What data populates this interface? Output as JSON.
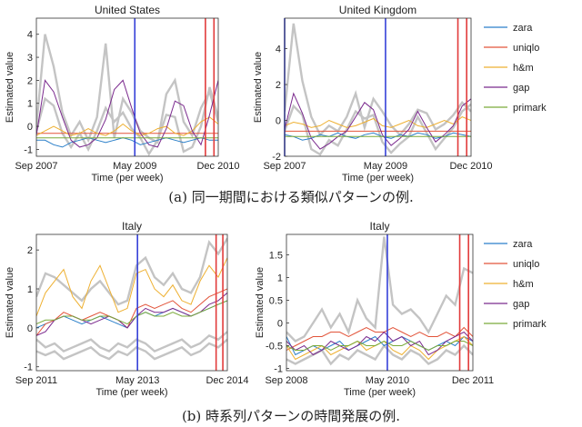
{
  "captions": {
    "a": "(a) 同一期間における類似パターンの例.",
    "b": "(b) 時系列パターンの時間発展の例."
  },
  "legend": [
    {
      "name": "zara",
      "color": "#2a7fc9"
    },
    {
      "name": "uniqlo",
      "color": "#e2543a"
    },
    {
      "name": "h&m",
      "color": "#eeb031"
    },
    {
      "name": "gap",
      "color": "#7b2a8e"
    },
    {
      "name": "primark",
      "color": "#7aaa3a"
    }
  ],
  "chart_data": [
    {
      "type": "line",
      "title": "United States",
      "xlabel": "Time (per week)",
      "ylabel": "Estimated value",
      "xtick_labels": [
        "Sep 2007",
        "May 2009",
        "Dec 2010"
      ],
      "yticks": [
        -1,
        0,
        1,
        2,
        3,
        4
      ],
      "ylim": [
        -1.3,
        4.7
      ],
      "n_weeks": 170,
      "vlines": [
        {
          "week": 92,
          "color": "#3540d8"
        },
        {
          "week": 158,
          "color": "#e23b3b"
        },
        {
          "week": 166,
          "color": "#e23b3b"
        }
      ],
      "series": [
        {
          "name": "zara",
          "values": [
            -0.6,
            -0.6,
            -0.8,
            -0.9,
            -0.7,
            -0.6,
            -0.5,
            -0.6,
            -0.7,
            -0.6,
            -0.5,
            -0.6,
            -0.8,
            -0.7,
            -0.6,
            -0.5,
            -0.6,
            -0.7,
            -0.6,
            -0.5,
            -0.6,
            -0.6
          ]
        },
        {
          "name": "uniqlo",
          "values": [
            -0.3,
            -0.3,
            -0.3,
            -0.3,
            -0.3,
            -0.3,
            -0.3,
            -0.3,
            -0.3,
            -0.3,
            -0.3,
            -0.3,
            -0.3,
            -0.3,
            -0.3,
            -0.3,
            -0.3,
            -0.3,
            -0.3,
            -0.3,
            -0.3,
            -0.3
          ]
        },
        {
          "name": "h&m",
          "values": [
            -0.4,
            -0.2,
            0.0,
            -0.2,
            -0.4,
            -0.3,
            -0.1,
            -0.3,
            -0.4,
            -0.2,
            0.1,
            -0.2,
            -0.4,
            -0.3,
            -0.1,
            0.0,
            -0.3,
            -0.4,
            -0.2,
            0.2,
            0.4,
            0.1
          ]
        },
        {
          "name": "gap",
          "values": [
            -0.4,
            2.0,
            1.5,
            0.4,
            -0.6,
            -0.9,
            -0.8,
            -0.5,
            0.3,
            1.6,
            2.0,
            0.8,
            -0.3,
            -0.8,
            -0.9,
            -0.1,
            1.1,
            0.9,
            -0.2,
            -0.8,
            0.5,
            2.0
          ]
        },
        {
          "name": "primark",
          "values": [
            -0.5,
            -0.5,
            -0.5,
            -0.5,
            -0.5,
            -0.5,
            -0.5,
            -0.5,
            -0.5,
            -0.5,
            -0.5,
            -0.5,
            -0.5,
            -0.5,
            -0.5,
            -0.5,
            -0.5,
            -0.5,
            -0.5,
            -0.5,
            -0.5,
            -0.5
          ]
        }
      ],
      "background": [
        [
          0.0,
          4.0,
          2.6,
          0.6,
          -0.4,
          0.2,
          -0.6,
          0.4,
          3.6,
          -0.5,
          1.2,
          0.6,
          -0.2,
          -0.5,
          -0.7,
          1.4,
          2.0,
          0.2,
          -0.4,
          0.8,
          1.5,
          0.2
        ],
        [
          -0.2,
          1.2,
          0.9,
          -0.3,
          -0.9,
          -0.3,
          -1.0,
          -0.2,
          0.8,
          0.2,
          0.6,
          -0.1,
          -0.5,
          -1.2,
          -0.6,
          0.5,
          0.4,
          -1.1,
          -0.9,
          0.0,
          1.7,
          0.4
        ]
      ]
    },
    {
      "type": "line",
      "title": "United Kingdom",
      "xlabel": "Time (per week)",
      "ylabel": "Estimated value",
      "xtick_labels": [
        "Sep 2007",
        "May 2009",
        "Dec 2010"
      ],
      "yticks": [
        -2,
        0,
        2,
        4
      ],
      "ylim": [
        -2.0,
        5.7
      ],
      "n_weeks": 170,
      "vlines": [
        {
          "week": 0,
          "color": "#3540d8"
        },
        {
          "week": 92,
          "color": "#3540d8"
        },
        {
          "week": 158,
          "color": "#e23b3b"
        },
        {
          "week": 166,
          "color": "#e23b3b"
        }
      ],
      "series": [
        {
          "name": "zara",
          "values": [
            -0.8,
            -0.9,
            -1.1,
            -1.0,
            -0.8,
            -0.9,
            -0.7,
            -0.9,
            -1.0,
            -0.8,
            -0.7,
            -0.9,
            -1.0,
            -0.8,
            -0.9,
            -0.7,
            -0.8,
            -1.0,
            -0.9,
            -0.7,
            -0.8,
            -0.9
          ]
        },
        {
          "name": "uniqlo",
          "values": [
            -0.6,
            -0.6,
            -0.6,
            -0.6,
            -0.6,
            -0.6,
            -0.6,
            -0.6,
            -0.6,
            -0.6,
            -0.6,
            -0.6,
            -0.6,
            -0.6,
            -0.6,
            -0.6,
            -0.6,
            -0.6,
            -0.6,
            -0.6,
            -0.6,
            -0.6
          ]
        },
        {
          "name": "h&m",
          "values": [
            -0.3,
            -0.1,
            -0.2,
            -0.4,
            -0.3,
            0.0,
            -0.2,
            -0.4,
            -0.3,
            -0.1,
            0.1,
            -0.3,
            -0.4,
            -0.2,
            0.0,
            -0.3,
            -0.4,
            -0.2,
            0.0,
            -0.2,
            0.2,
            0.0
          ]
        },
        {
          "name": "gap",
          "values": [
            -0.5,
            1.5,
            0.4,
            -1.0,
            -1.6,
            -1.3,
            -0.9,
            -0.6,
            0.2,
            1.0,
            0.6,
            -0.8,
            -1.4,
            -1.0,
            -0.5,
            0.5,
            -0.4,
            -1.2,
            -0.8,
            -0.3,
            0.8,
            1.2
          ]
        },
        {
          "name": "primark",
          "values": [
            -0.9,
            -0.9,
            -0.9,
            -0.9,
            -0.9,
            -0.9,
            -0.9,
            -0.9,
            -0.9,
            -0.9,
            -0.9,
            -0.9,
            -0.9,
            -0.9,
            -0.9,
            -0.9,
            -0.9,
            -0.9,
            -0.9,
            -0.9,
            -0.9,
            -0.9
          ]
        }
      ],
      "background": [
        [
          0.5,
          5.4,
          2.2,
          0.2,
          -0.8,
          -0.3,
          -0.6,
          0.2,
          1.5,
          -0.4,
          1.2,
          0.5,
          -0.3,
          -0.8,
          -0.2,
          0.6,
          0.4,
          -0.5,
          -0.2,
          0.3,
          1.0,
          0.5
        ],
        [
          -0.6,
          0.8,
          0.3,
          -1.6,
          -1.9,
          -1.1,
          -1.4,
          -0.5,
          0.5,
          0.1,
          0.3,
          -1.2,
          -1.8,
          -1.3,
          -0.9,
          0.2,
          -0.7,
          -1.6,
          -1.0,
          -0.4,
          0.5,
          0.9
        ]
      ]
    },
    {
      "type": "line",
      "title": "Italy",
      "xlabel": "Time (per week)",
      "ylabel": "Estimated value",
      "xtick_labels": [
        "Sep 2011",
        "May 2013",
        "Dec 2014"
      ],
      "yticks": [
        -1,
        0,
        1,
        2
      ],
      "ylim": [
        -1.1,
        2.4
      ],
      "n_weeks": 170,
      "vlines": [
        {
          "week": 90,
          "color": "#3540d8"
        },
        {
          "week": 160,
          "color": "#e23b3b"
        },
        {
          "week": 166,
          "color": "#e23b3b"
        }
      ],
      "series": [
        {
          "name": "zara",
          "values": [
            0.0,
            0.1,
            0.2,
            0.3,
            0.2,
            0.1,
            0.2,
            0.3,
            0.2,
            0.1,
            0.0,
            0.3,
            0.4,
            0.3,
            0.4,
            0.5,
            0.4,
            0.3,
            0.4,
            0.5,
            0.6,
            0.7
          ]
        },
        {
          "name": "uniqlo",
          "values": [
            -0.2,
            0.1,
            0.2,
            0.4,
            0.3,
            0.2,
            0.3,
            0.4,
            0.3,
            0.2,
            0.0,
            0.5,
            0.6,
            0.5,
            0.6,
            0.7,
            0.5,
            0.4,
            0.6,
            0.8,
            0.9,
            1.0
          ]
        },
        {
          "name": "h&m",
          "values": [
            0.3,
            0.9,
            1.2,
            1.5,
            0.8,
            0.5,
            1.2,
            1.6,
            1.0,
            0.4,
            0.5,
            1.4,
            1.5,
            1.0,
            0.8,
            1.1,
            0.7,
            0.6,
            1.2,
            1.6,
            1.3,
            1.8
          ]
        },
        {
          "name": "gap",
          "values": [
            -0.2,
            -0.1,
            0.2,
            0.3,
            0.3,
            0.2,
            0.1,
            0.2,
            0.3,
            0.2,
            0.0,
            0.3,
            0.5,
            0.4,
            0.4,
            0.5,
            0.4,
            0.3,
            0.4,
            0.6,
            0.7,
            0.9
          ]
        },
        {
          "name": "primark",
          "values": [
            0.1,
            0.2,
            0.2,
            0.3,
            0.3,
            0.2,
            0.2,
            0.3,
            0.3,
            0.2,
            0.1,
            0.3,
            0.4,
            0.3,
            0.3,
            0.4,
            0.3,
            0.3,
            0.4,
            0.5,
            0.6,
            0.7
          ]
        }
      ],
      "background": [
        [
          0.8,
          1.4,
          1.3,
          1.1,
          0.9,
          0.7,
          1.0,
          1.2,
          0.9,
          0.6,
          0.7,
          1.6,
          1.8,
          1.3,
          1.1,
          1.4,
          1.0,
          0.9,
          1.3,
          2.2,
          1.9,
          2.3
        ],
        [
          -0.3,
          -0.5,
          -0.4,
          -0.6,
          -0.5,
          -0.4,
          -0.3,
          -0.5,
          -0.6,
          -0.4,
          -0.5,
          -0.3,
          -0.4,
          -0.6,
          -0.5,
          -0.4,
          -0.3,
          -0.5,
          -0.4,
          -0.2,
          -0.3,
          -0.1
        ],
        [
          -0.6,
          -0.7,
          -0.6,
          -0.8,
          -0.7,
          -0.6,
          -0.5,
          -0.7,
          -0.8,
          -0.6,
          -0.7,
          -0.5,
          -0.6,
          -0.8,
          -0.7,
          -0.6,
          -0.5,
          -0.7,
          -0.6,
          -0.4,
          -0.5,
          -0.3
        ]
      ]
    },
    {
      "type": "line",
      "title": "Italy",
      "xlabel": "Time (per week)",
      "ylabel": "Estimated value",
      "xtick_labels": [
        "Sep 2008",
        "May 2010",
        "Dec 2011"
      ],
      "yticks": [
        -1,
        -0.5,
        0,
        0.5,
        1,
        1.5
      ],
      "ylim": [
        -1.05,
        1.95
      ],
      "n_weeks": 170,
      "vlines": [
        {
          "week": 92,
          "color": "#3540d8"
        },
        {
          "week": 158,
          "color": "#e23b3b"
        },
        {
          "week": 166,
          "color": "#e23b3b"
        }
      ],
      "series": [
        {
          "name": "zara",
          "values": [
            -0.3,
            -0.7,
            -0.6,
            -0.5,
            -0.6,
            -0.5,
            -0.4,
            -0.6,
            -0.5,
            -0.4,
            -0.3,
            -0.5,
            -0.4,
            -0.3,
            -0.4,
            -0.5,
            -0.6,
            -0.5,
            -0.4,
            -0.5,
            -0.3,
            -0.4
          ]
        },
        {
          "name": "uniqlo",
          "values": [
            -0.6,
            -0.5,
            -0.4,
            -0.3,
            -0.3,
            -0.2,
            -0.2,
            -0.3,
            -0.2,
            -0.1,
            -0.2,
            -0.2,
            -0.1,
            -0.2,
            -0.3,
            -0.2,
            -0.3,
            -0.3,
            -0.2,
            -0.3,
            -0.1,
            -0.3
          ]
        },
        {
          "name": "h&m",
          "values": [
            -0.5,
            -0.8,
            -0.7,
            -0.6,
            -0.5,
            -0.7,
            -0.6,
            -0.5,
            -0.4,
            -0.6,
            -0.5,
            -0.4,
            -0.6,
            -0.7,
            -0.5,
            -0.6,
            -0.8,
            -0.6,
            -0.5,
            -0.4,
            -0.3,
            -0.5
          ]
        },
        {
          "name": "gap",
          "values": [
            -0.4,
            -0.6,
            -0.5,
            -0.7,
            -0.6,
            -0.4,
            -0.5,
            -0.6,
            -0.5,
            -0.3,
            -0.4,
            -0.2,
            -0.4,
            -0.3,
            -0.5,
            -0.4,
            -0.7,
            -0.6,
            -0.4,
            -0.3,
            -0.2,
            -0.4
          ]
        },
        {
          "name": "primark",
          "values": [
            -0.5,
            -0.6,
            -0.6,
            -0.5,
            -0.5,
            -0.6,
            -0.5,
            -0.5,
            -0.4,
            -0.5,
            -0.5,
            -0.4,
            -0.5,
            -0.5,
            -0.4,
            -0.5,
            -0.6,
            -0.5,
            -0.5,
            -0.4,
            -0.4,
            -0.5
          ]
        }
      ],
      "background": [
        [
          -0.2,
          -0.4,
          -0.3,
          0.0,
          0.3,
          -0.1,
          0.2,
          -0.2,
          0.5,
          0.1,
          -0.1,
          1.9,
          0.4,
          0.2,
          0.3,
          0.1,
          -0.2,
          0.2,
          0.6,
          0.4,
          1.2,
          1.1
        ],
        [
          -0.8,
          -0.9,
          -0.8,
          -0.7,
          -0.6,
          -0.9,
          -0.7,
          -0.8,
          -0.6,
          -0.7,
          -0.8,
          -0.5,
          -0.7,
          -0.8,
          -0.6,
          -0.7,
          -0.9,
          -0.8,
          -0.6,
          -0.7,
          -0.5,
          -0.7
        ]
      ]
    }
  ]
}
